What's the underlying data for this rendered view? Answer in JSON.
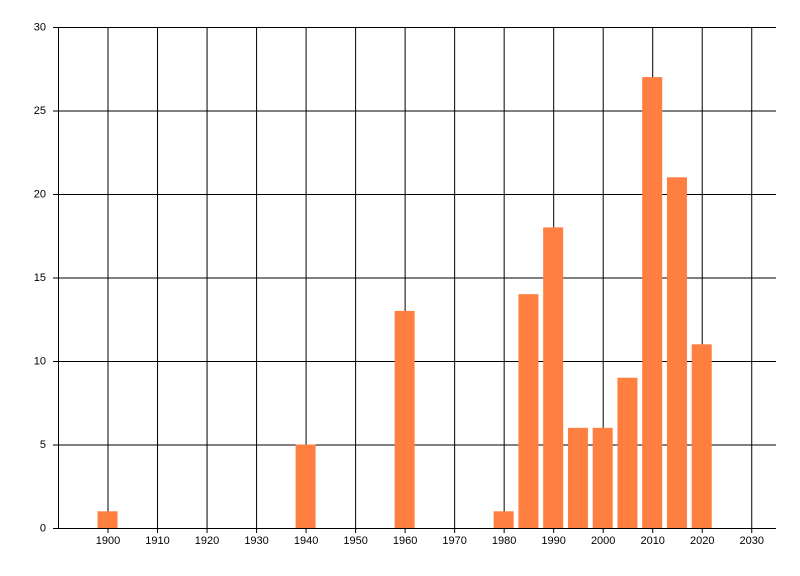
{
  "chart_data": {
    "type": "bar",
    "x": [
      1900,
      1940,
      1960,
      1980,
      1985,
      1990,
      1995,
      2000,
      2005,
      2010,
      2015,
      2020
    ],
    "values": [
      1,
      5,
      13,
      1,
      14,
      18,
      6,
      6,
      9,
      27,
      21,
      11
    ],
    "color": "#ff7f40",
    "xlim": [
      1890,
      2035
    ],
    "xticks": [
      1900,
      1910,
      1920,
      1930,
      1940,
      1950,
      1960,
      1970,
      1980,
      1990,
      2000,
      2010,
      2020,
      2030
    ],
    "ylim": [
      0,
      30
    ],
    "yticks": [
      0,
      5,
      10,
      15,
      20,
      25,
      30
    ],
    "grid": true
  }
}
